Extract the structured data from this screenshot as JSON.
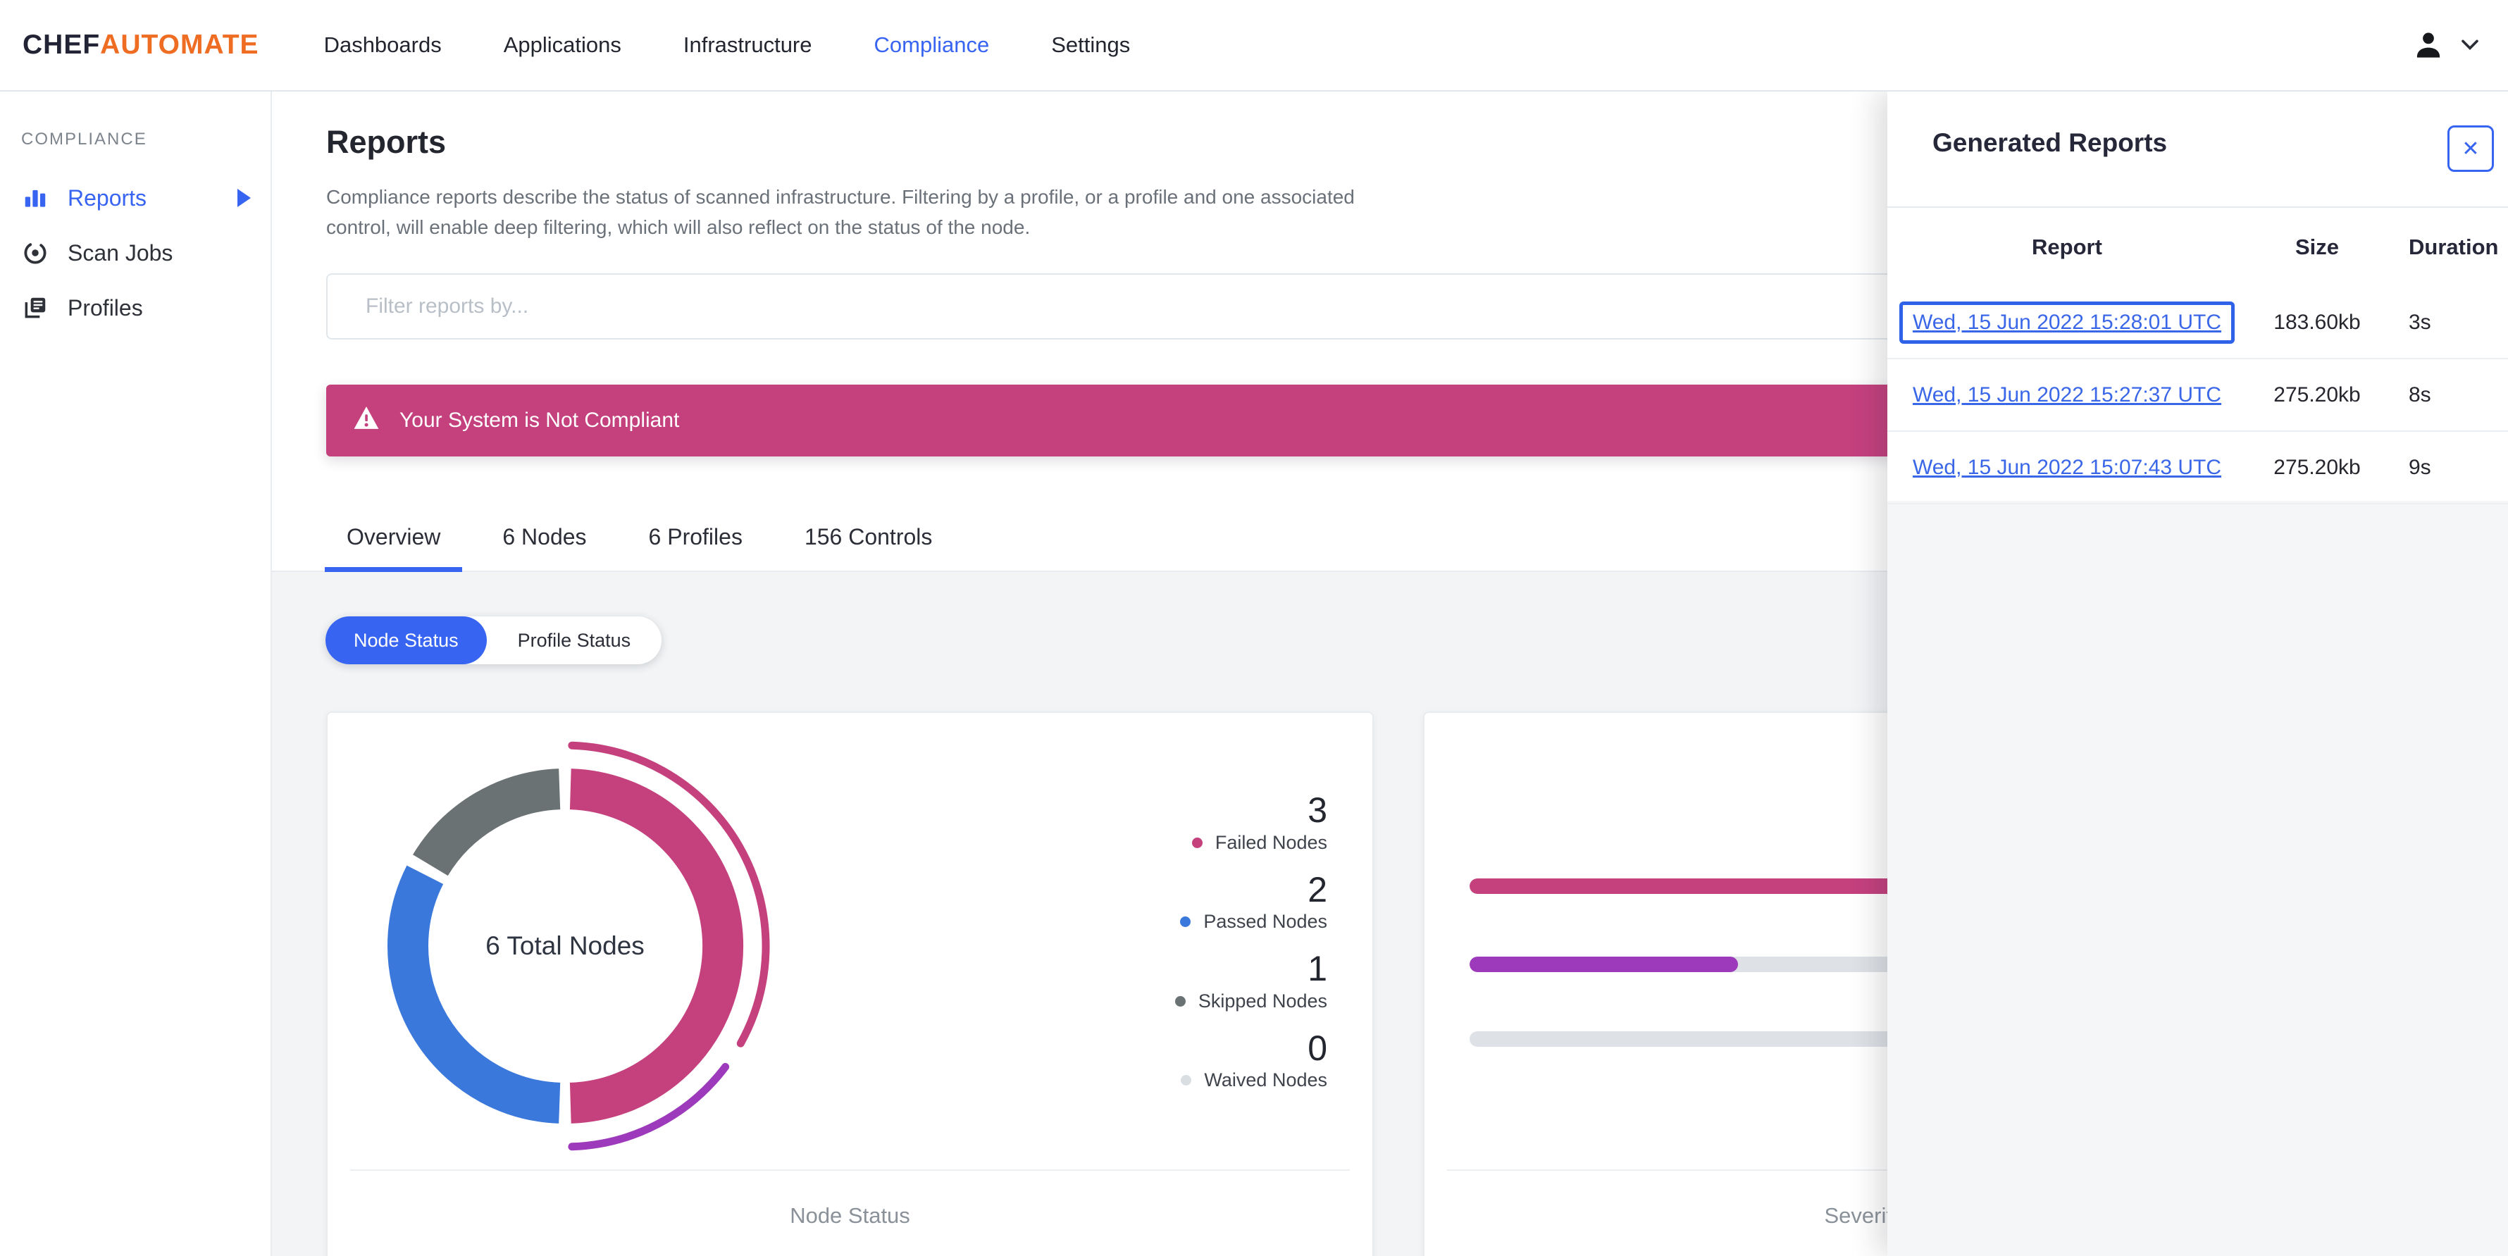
{
  "brand": {
    "chef": "CHEF",
    "automate": "AUTOMATE"
  },
  "nav": {
    "items": [
      {
        "label": "Dashboards"
      },
      {
        "label": "Applications"
      },
      {
        "label": "Infrastructure"
      },
      {
        "label": "Compliance"
      },
      {
        "label": "Settings"
      }
    ],
    "active": "Compliance"
  },
  "sidebar": {
    "section": "COMPLIANCE",
    "items": [
      {
        "label": "Reports"
      },
      {
        "label": "Scan Jobs"
      },
      {
        "label": "Profiles"
      }
    ],
    "active": "Reports"
  },
  "page": {
    "title": "Reports",
    "description": "Compliance reports describe the status of scanned infrastructure. Filtering by a profile, or a profile and one associated control, will enable deep filtering, which will also reflect on the status of the node.",
    "filter_placeholder": "Filter reports by...",
    "banner_text": "Your System is Not Compliant",
    "tabs": [
      {
        "label": "Overview",
        "active": true
      },
      {
        "label": "6 Nodes",
        "active": false
      },
      {
        "label": "6 Profiles",
        "active": false
      },
      {
        "label": "156 Controls",
        "active": false
      }
    ],
    "toggle": {
      "left": "Node Status",
      "right": "Profile Status"
    }
  },
  "drawer": {
    "title": "Generated Reports",
    "close_label": "✕",
    "columns": [
      "Report",
      "Size",
      "Duration"
    ],
    "rows": [
      {
        "report": "Wed, 15 Jun 2022 15:28:01 UTC",
        "size": "183.60kb",
        "duration": "3s",
        "focused": true
      },
      {
        "report": "Wed, 15 Jun 2022 15:27:37 UTC",
        "size": "275.20kb",
        "duration": "8s",
        "focused": false
      },
      {
        "report": "Wed, 15 Jun 2022 15:07:43 UTC",
        "size": "275.20kb",
        "duration": "9s",
        "focused": false
      }
    ]
  },
  "chart_data": [
    {
      "type": "pie",
      "title": "Node Status",
      "center_label": "6 Total Nodes",
      "total": 6,
      "categories": [
        "Failed Nodes",
        "Passed Nodes",
        "Skipped Nodes",
        "Waived Nodes"
      ],
      "values": [
        3,
        2,
        1,
        0
      ],
      "colors": [
        "#c4417e",
        "#3b78dc",
        "#6a7274",
        "#d9dee2"
      ],
      "outer_arcs": [
        {
          "color": "#c4417e"
        },
        {
          "color": "#9c3abb"
        }
      ],
      "legend_position": "right"
    },
    {
      "type": "bar",
      "orientation": "horizontal",
      "title": "Severity of Node Failures",
      "series": [
        {
          "name": "bar-1",
          "pct": 100,
          "color": "#c4417e"
        },
        {
          "name": "bar-2",
          "pct": 28,
          "color": "#9c3abb"
        },
        {
          "name": "bar-3",
          "pct": 0,
          "color": "#dee2e6"
        }
      ],
      "track_color": "#dee2e6"
    }
  ],
  "colors": {
    "primary": "#3864f2",
    "brand_orange": "#ef6c23",
    "banner": "#c4417e",
    "page_bg": "#f2f4f6",
    "border": "#e3e7eb",
    "text": "#26283a",
    "muted": "#6b7179",
    "link": "#3a66e8"
  }
}
